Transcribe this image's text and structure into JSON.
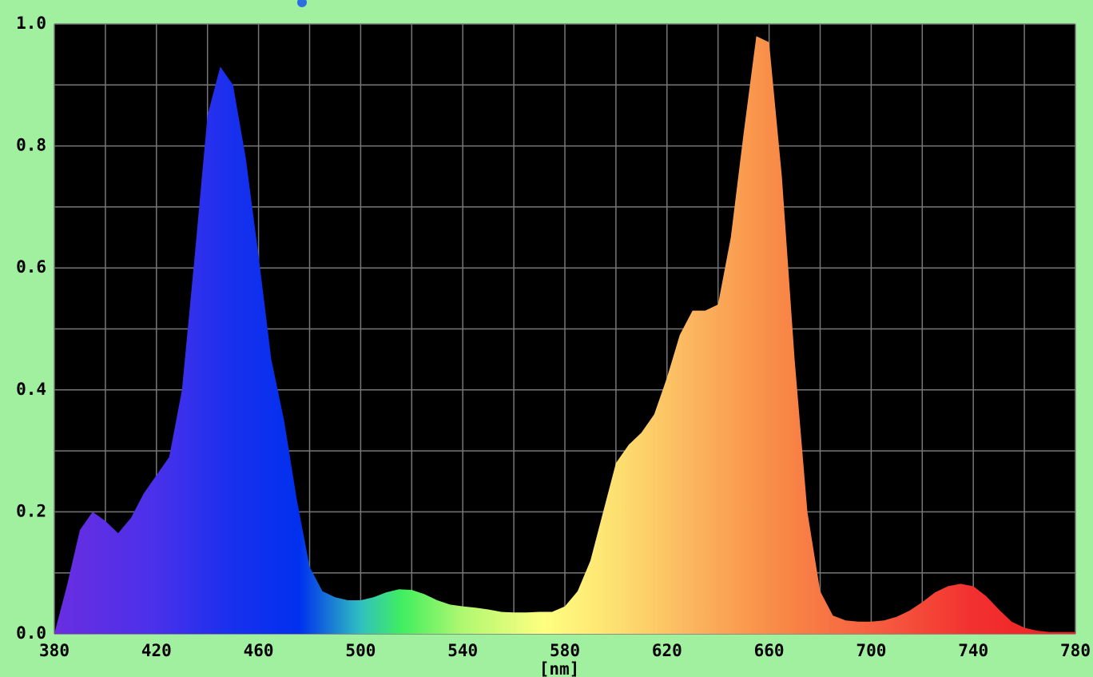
{
  "chart_data": {
    "type": "area",
    "x_label": "[nm]",
    "x": [
      380,
      385,
      390,
      395,
      400,
      405,
      410,
      415,
      420,
      425,
      430,
      435,
      440,
      445,
      450,
      455,
      460,
      465,
      470,
      475,
      480,
      485,
      490,
      495,
      500,
      505,
      510,
      515,
      520,
      525,
      530,
      535,
      540,
      545,
      550,
      555,
      560,
      565,
      570,
      575,
      580,
      585,
      590,
      595,
      600,
      605,
      610,
      615,
      620,
      625,
      630,
      635,
      640,
      645,
      650,
      655,
      660,
      665,
      670,
      675,
      680,
      685,
      690,
      695,
      700,
      705,
      710,
      715,
      720,
      725,
      730,
      735,
      740,
      745,
      750,
      755,
      760,
      765,
      770,
      775,
      780
    ],
    "values": [
      0.0,
      0.08,
      0.17,
      0.2,
      0.185,
      0.165,
      0.19,
      0.23,
      0.26,
      0.29,
      0.4,
      0.62,
      0.85,
      0.93,
      0.9,
      0.78,
      0.62,
      0.45,
      0.35,
      0.22,
      0.11,
      0.07,
      0.06,
      0.055,
      0.055,
      0.06,
      0.068,
      0.073,
      0.072,
      0.065,
      0.055,
      0.048,
      0.045,
      0.043,
      0.04,
      0.036,
      0.035,
      0.035,
      0.036,
      0.036,
      0.045,
      0.07,
      0.12,
      0.2,
      0.28,
      0.31,
      0.33,
      0.36,
      0.42,
      0.49,
      0.53,
      0.53,
      0.54,
      0.65,
      0.82,
      0.98,
      0.97,
      0.75,
      0.45,
      0.2,
      0.07,
      0.03,
      0.022,
      0.02,
      0.02,
      0.022,
      0.028,
      0.038,
      0.052,
      0.068,
      0.078,
      0.082,
      0.078,
      0.062,
      0.04,
      0.02,
      0.01,
      0.005,
      0.003,
      0.003,
      0.003
    ],
    "xlim": [
      380,
      780
    ],
    "xticks": [
      380,
      420,
      460,
      500,
      540,
      580,
      620,
      660,
      700,
      740,
      780
    ],
    "xgrid": [
      380,
      400,
      420,
      440,
      460,
      480,
      500,
      520,
      540,
      560,
      580,
      600,
      620,
      640,
      660,
      680,
      700,
      720,
      740,
      760,
      780
    ],
    "ylim": [
      0,
      1
    ],
    "yticks": [
      {
        "value": 0,
        "label": "0.0"
      },
      {
        "value": 0.2,
        "label": "0.2"
      },
      {
        "value": 0.4,
        "label": "0.4"
      },
      {
        "value": 0.6,
        "label": "0.6"
      },
      {
        "value": 0.8,
        "label": "0.8"
      },
      {
        "value": 1,
        "label": "1.0"
      }
    ],
    "ygrid": [
      0,
      0.1,
      0.2,
      0.3,
      0.4,
      0.5,
      0.6,
      0.7,
      0.8,
      0.9,
      1
    ],
    "grid": true
  }
}
